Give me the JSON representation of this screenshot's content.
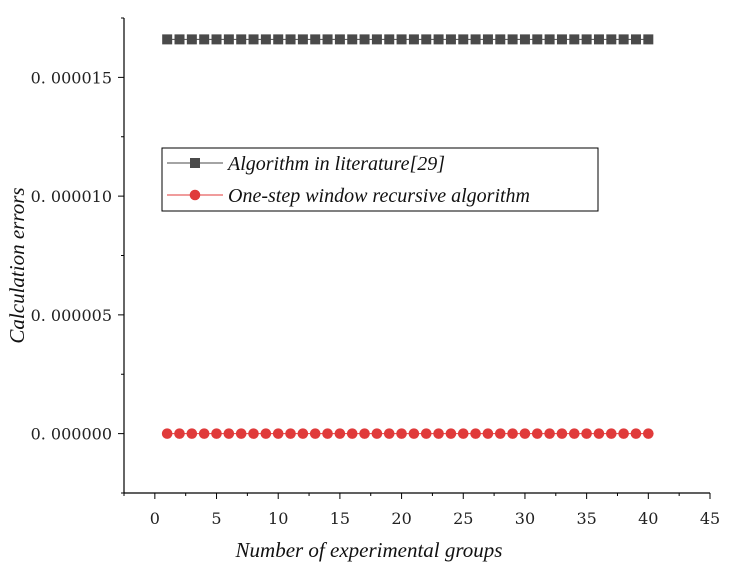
{
  "chart_data": {
    "type": "scatter",
    "xlabel": "Number of experimental groups",
    "ylabel": "Calculation errors",
    "xlim": [
      -2.5,
      45
    ],
    "ylim": [
      -2.5e-06,
      1.75e-05
    ],
    "x_ticks": [
      0,
      5,
      10,
      15,
      20,
      25,
      30,
      35,
      40,
      45
    ],
    "x_tick_labels": [
      "0",
      "5",
      "10",
      "15",
      "20",
      "25",
      "30",
      "35",
      "40",
      "45"
    ],
    "y_ticks": [
      0,
      5e-06,
      1e-05,
      1.5e-05
    ],
    "y_tick_labels": [
      "0. 000000",
      "0. 000005",
      "0. 000010",
      "0. 000015"
    ],
    "grid": false,
    "legend_position": "upper-center",
    "series": [
      {
        "name": "Algorithm in literature[29]",
        "color": "#4a4a4a",
        "marker": "square",
        "x": [
          1,
          2,
          3,
          4,
          5,
          6,
          7,
          8,
          9,
          10,
          11,
          12,
          13,
          14,
          15,
          16,
          17,
          18,
          19,
          20,
          21,
          22,
          23,
          24,
          25,
          26,
          27,
          28,
          29,
          30,
          31,
          32,
          33,
          34,
          35,
          36,
          37,
          38,
          39,
          40
        ],
        "y": [
          1.66e-05,
          1.66e-05,
          1.66e-05,
          1.66e-05,
          1.66e-05,
          1.66e-05,
          1.66e-05,
          1.66e-05,
          1.66e-05,
          1.66e-05,
          1.66e-05,
          1.66e-05,
          1.66e-05,
          1.66e-05,
          1.66e-05,
          1.66e-05,
          1.66e-05,
          1.66e-05,
          1.66e-05,
          1.66e-05,
          1.66e-05,
          1.66e-05,
          1.66e-05,
          1.66e-05,
          1.66e-05,
          1.66e-05,
          1.66e-05,
          1.66e-05,
          1.66e-05,
          1.66e-05,
          1.66e-05,
          1.66e-05,
          1.66e-05,
          1.66e-05,
          1.66e-05,
          1.66e-05,
          1.66e-05,
          1.66e-05,
          1.66e-05,
          1.66e-05
        ]
      },
      {
        "name": "One-step window recursive algorithm",
        "color": "#e03a3a",
        "marker": "circle",
        "x": [
          1,
          2,
          3,
          4,
          5,
          6,
          7,
          8,
          9,
          10,
          11,
          12,
          13,
          14,
          15,
          16,
          17,
          18,
          19,
          20,
          21,
          22,
          23,
          24,
          25,
          26,
          27,
          28,
          29,
          30,
          31,
          32,
          33,
          34,
          35,
          36,
          37,
          38,
          39,
          40
        ],
        "y": [
          0,
          0,
          0,
          0,
          0,
          0,
          0,
          0,
          0,
          0,
          0,
          0,
          0,
          0,
          0,
          0,
          0,
          0,
          0,
          0,
          0,
          0,
          0,
          0,
          0,
          0,
          0,
          0,
          0,
          0,
          0,
          0,
          0,
          0,
          0,
          0,
          0,
          0,
          0,
          0
        ]
      }
    ]
  }
}
